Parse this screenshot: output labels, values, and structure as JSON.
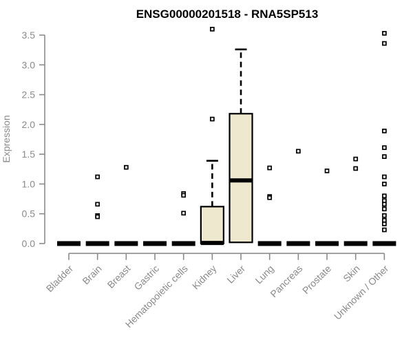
{
  "window": {
    "title": "ENSG00000201518 - RNA5SP513"
  },
  "colors": {
    "background": "#ffffff",
    "title": "#000000",
    "axis": "#8a8a8a",
    "box_fill": "#EDE8CE",
    "box_border": "#000000",
    "median": "#000000",
    "outlier": "#000000"
  },
  "chart_data": {
    "type": "boxplot",
    "title": "ENSG00000201518 - RNA5SP513",
    "xlabel": "",
    "ylabel": "Expression",
    "ylim": [
      0.0,
      3.5
    ],
    "yticks": [
      0.0,
      0.5,
      1.0,
      1.5,
      2.0,
      2.5,
      3.0,
      3.5
    ],
    "grid": false,
    "legend": null,
    "categories": [
      "Bladder",
      "Brain",
      "Breast",
      "Gastric",
      "Hematopoietic cells",
      "Kidney",
      "Liver",
      "Lung",
      "Pancreas",
      "Prostate",
      "Skin",
      "Unknown / Other"
    ],
    "boxes": [
      {
        "category": "Bladder",
        "q1": 0,
        "median": 0,
        "q3": 0,
        "whisker_low": 0,
        "whisker_high": 0,
        "outliers": []
      },
      {
        "category": "Brain",
        "q1": 0,
        "median": 0,
        "q3": 0,
        "whisker_low": 0,
        "whisker_high": 0,
        "outliers": [
          1.12,
          0.66,
          0.47,
          0.45
        ]
      },
      {
        "category": "Breast",
        "q1": 0,
        "median": 0,
        "q3": 0,
        "whisker_low": 0,
        "whisker_high": 0,
        "outliers": [
          1.28
        ]
      },
      {
        "category": "Gastric",
        "q1": 0,
        "median": 0,
        "q3": 0,
        "whisker_low": 0,
        "whisker_high": 0,
        "outliers": []
      },
      {
        "category": "Hematopoietic cells",
        "q1": 0,
        "median": 0,
        "q3": 0,
        "whisker_low": 0,
        "whisker_high": 0,
        "outliers": [
          0.84,
          0.81,
          0.51
        ]
      },
      {
        "category": "Kidney",
        "q1": 0,
        "median": 0.01,
        "q3": 0.62,
        "whisker_low": 0,
        "whisker_high": 1.39,
        "outliers": [
          3.6,
          2.09
        ]
      },
      {
        "category": "Liver",
        "q1": 0.02,
        "median": 1.06,
        "q3": 2.18,
        "whisker_low": 0.02,
        "whisker_high": 3.26,
        "outliers": []
      },
      {
        "category": "Lung",
        "q1": 0,
        "median": 0,
        "q3": 0,
        "whisker_low": 0,
        "whisker_high": 0,
        "outliers": [
          1.27,
          0.79,
          0.77
        ]
      },
      {
        "category": "Pancreas",
        "q1": 0,
        "median": 0,
        "q3": 0,
        "whisker_low": 0,
        "whisker_high": 0,
        "outliers": [
          1.55
        ]
      },
      {
        "category": "Prostate",
        "q1": 0,
        "median": 0,
        "q3": 0,
        "whisker_low": 0,
        "whisker_high": 0,
        "outliers": [
          1.22
        ]
      },
      {
        "category": "Skin",
        "q1": 0,
        "median": 0,
        "q3": 0,
        "whisker_low": 0,
        "whisker_high": 0,
        "outliers": [
          1.42,
          1.26
        ]
      },
      {
        "category": "Unknown / Other",
        "q1": 0,
        "median": 0,
        "q3": 0,
        "whisker_low": 0,
        "whisker_high": 0,
        "outliers": [
          3.53,
          3.36,
          1.89,
          1.61,
          1.46,
          1.12,
          1.0,
          0.8,
          0.72,
          0.66,
          0.58,
          0.47,
          0.39,
          0.33,
          0.23
        ]
      }
    ]
  }
}
